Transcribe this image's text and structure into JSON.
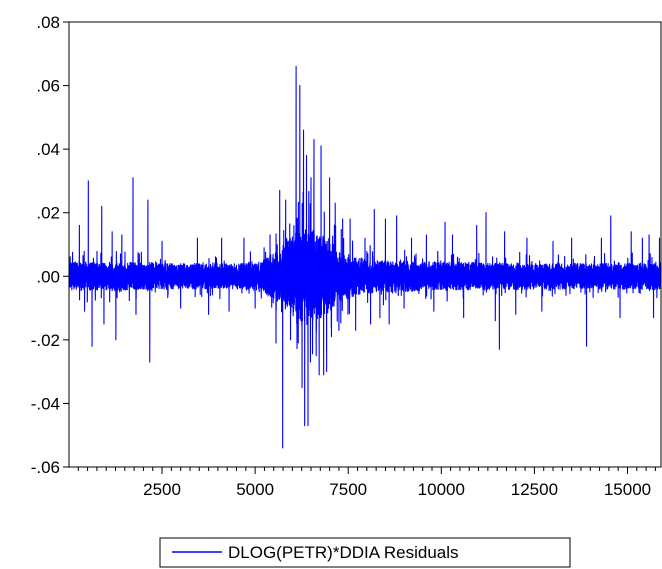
{
  "chart_data": {
    "type": "line",
    "title": "",
    "xlabel": "",
    "ylabel": "",
    "xlim": [
      1,
      15900
    ],
    "ylim": [
      -0.06,
      0.08
    ],
    "xticks": [
      2500,
      5000,
      7500,
      10000,
      12500,
      15000
    ],
    "xtick_labels": [
      "2500",
      "5000",
      "7500",
      "10000",
      "12500",
      "15000"
    ],
    "yticks": [
      -0.06,
      -0.04,
      -0.02,
      0.0,
      0.02,
      0.04,
      0.06,
      0.08
    ],
    "ytick_labels": [
      "-.06",
      "-.04",
      "-.02",
      ".00",
      ".02",
      ".04",
      ".06",
      ".08"
    ],
    "grid": false,
    "legend_position": "bottom-center",
    "series": [
      {
        "name": "DLOG(PETR)*DDIA Residuals",
        "color": "#0000ff",
        "base_band": [
          {
            "x": 1,
            "amp": 0.0045
          },
          {
            "x": 1500,
            "amp": 0.0045
          },
          {
            "x": 3000,
            "amp": 0.004
          },
          {
            "x": 4500,
            "amp": 0.004
          },
          {
            "x": 5200,
            "amp": 0.005
          },
          {
            "x": 5600,
            "amp": 0.008
          },
          {
            "x": 6000,
            "amp": 0.013
          },
          {
            "x": 6400,
            "amp": 0.016
          },
          {
            "x": 6800,
            "amp": 0.013
          },
          {
            "x": 7200,
            "amp": 0.009
          },
          {
            "x": 7700,
            "amp": 0.006
          },
          {
            "x": 8500,
            "amp": 0.005
          },
          {
            "x": 10000,
            "amp": 0.0045
          },
          {
            "x": 12000,
            "amp": 0.0042
          },
          {
            "x": 14000,
            "amp": 0.004
          },
          {
            "x": 15900,
            "amp": 0.0042
          }
        ],
        "spikes": [
          {
            "x": 280,
            "y": 0.016
          },
          {
            "x": 420,
            "y": -0.011
          },
          {
            "x": 520,
            "y": 0.03
          },
          {
            "x": 620,
            "y": -0.022
          },
          {
            "x": 880,
            "y": 0.022
          },
          {
            "x": 940,
            "y": -0.015
          },
          {
            "x": 1160,
            "y": 0.014
          },
          {
            "x": 1260,
            "y": -0.02
          },
          {
            "x": 1420,
            "y": 0.013
          },
          {
            "x": 1720,
            "y": 0.031
          },
          {
            "x": 1800,
            "y": -0.012
          },
          {
            "x": 2120,
            "y": 0.024
          },
          {
            "x": 2170,
            "y": -0.027
          },
          {
            "x": 2500,
            "y": 0.011
          },
          {
            "x": 3000,
            "y": -0.01
          },
          {
            "x": 3450,
            "y": 0.012
          },
          {
            "x": 3750,
            "y": -0.012
          },
          {
            "x": 4100,
            "y": 0.012
          },
          {
            "x": 4300,
            "y": -0.011
          },
          {
            "x": 4700,
            "y": 0.012
          },
          {
            "x": 5000,
            "y": -0.01
          },
          {
            "x": 5400,
            "y": 0.013
          },
          {
            "x": 5560,
            "y": -0.021
          },
          {
            "x": 5660,
            "y": 0.027
          },
          {
            "x": 5740,
            "y": -0.054
          },
          {
            "x": 5820,
            "y": 0.024
          },
          {
            "x": 5950,
            "y": -0.02
          },
          {
            "x": 6100,
            "y": 0.066
          },
          {
            "x": 6200,
            "y": 0.06
          },
          {
            "x": 6260,
            "y": -0.035
          },
          {
            "x": 6300,
            "y": 0.046
          },
          {
            "x": 6330,
            "y": -0.047
          },
          {
            "x": 6380,
            "y": 0.038
          },
          {
            "x": 6420,
            "y": -0.047
          },
          {
            "x": 6500,
            "y": 0.031
          },
          {
            "x": 6580,
            "y": 0.043
          },
          {
            "x": 6640,
            "y": -0.025
          },
          {
            "x": 6720,
            "y": -0.031
          },
          {
            "x": 6770,
            "y": 0.041
          },
          {
            "x": 6840,
            "y": -0.031
          },
          {
            "x": 6920,
            "y": -0.03
          },
          {
            "x": 7000,
            "y": 0.031
          },
          {
            "x": 7050,
            "y": -0.019
          },
          {
            "x": 7150,
            "y": 0.023
          },
          {
            "x": 7250,
            "y": -0.017
          },
          {
            "x": 7350,
            "y": 0.018
          },
          {
            "x": 7550,
            "y": 0.018
          },
          {
            "x": 7700,
            "y": -0.017
          },
          {
            "x": 7950,
            "y": 0.012
          },
          {
            "x": 8100,
            "y": -0.015
          },
          {
            "x": 8200,
            "y": 0.021
          },
          {
            "x": 8350,
            "y": -0.013
          },
          {
            "x": 8500,
            "y": 0.018
          },
          {
            "x": 8600,
            "y": -0.015
          },
          {
            "x": 8800,
            "y": 0.019
          },
          {
            "x": 9000,
            "y": -0.01
          },
          {
            "x": 9200,
            "y": 0.012
          },
          {
            "x": 9600,
            "y": 0.013
          },
          {
            "x": 9800,
            "y": -0.011
          },
          {
            "x": 10100,
            "y": 0.017
          },
          {
            "x": 10300,
            "y": 0.013
          },
          {
            "x": 10600,
            "y": -0.013
          },
          {
            "x": 10950,
            "y": 0.016
          },
          {
            "x": 11200,
            "y": 0.02
          },
          {
            "x": 11450,
            "y": -0.014
          },
          {
            "x": 11560,
            "y": -0.023
          },
          {
            "x": 11700,
            "y": 0.014
          },
          {
            "x": 12000,
            "y": -0.012
          },
          {
            "x": 12300,
            "y": 0.012
          },
          {
            "x": 12700,
            "y": -0.011
          },
          {
            "x": 13000,
            "y": 0.011
          },
          {
            "x": 13500,
            "y": 0.012
          },
          {
            "x": 13900,
            "y": -0.022
          },
          {
            "x": 14300,
            "y": 0.012
          },
          {
            "x": 14550,
            "y": 0.019
          },
          {
            "x": 14800,
            "y": -0.013
          },
          {
            "x": 15100,
            "y": 0.014
          },
          {
            "x": 15400,
            "y": 0.012
          },
          {
            "x": 15580,
            "y": 0.013
          },
          {
            "x": 15700,
            "y": -0.013
          },
          {
            "x": 15860,
            "y": 0.012
          }
        ]
      }
    ]
  }
}
